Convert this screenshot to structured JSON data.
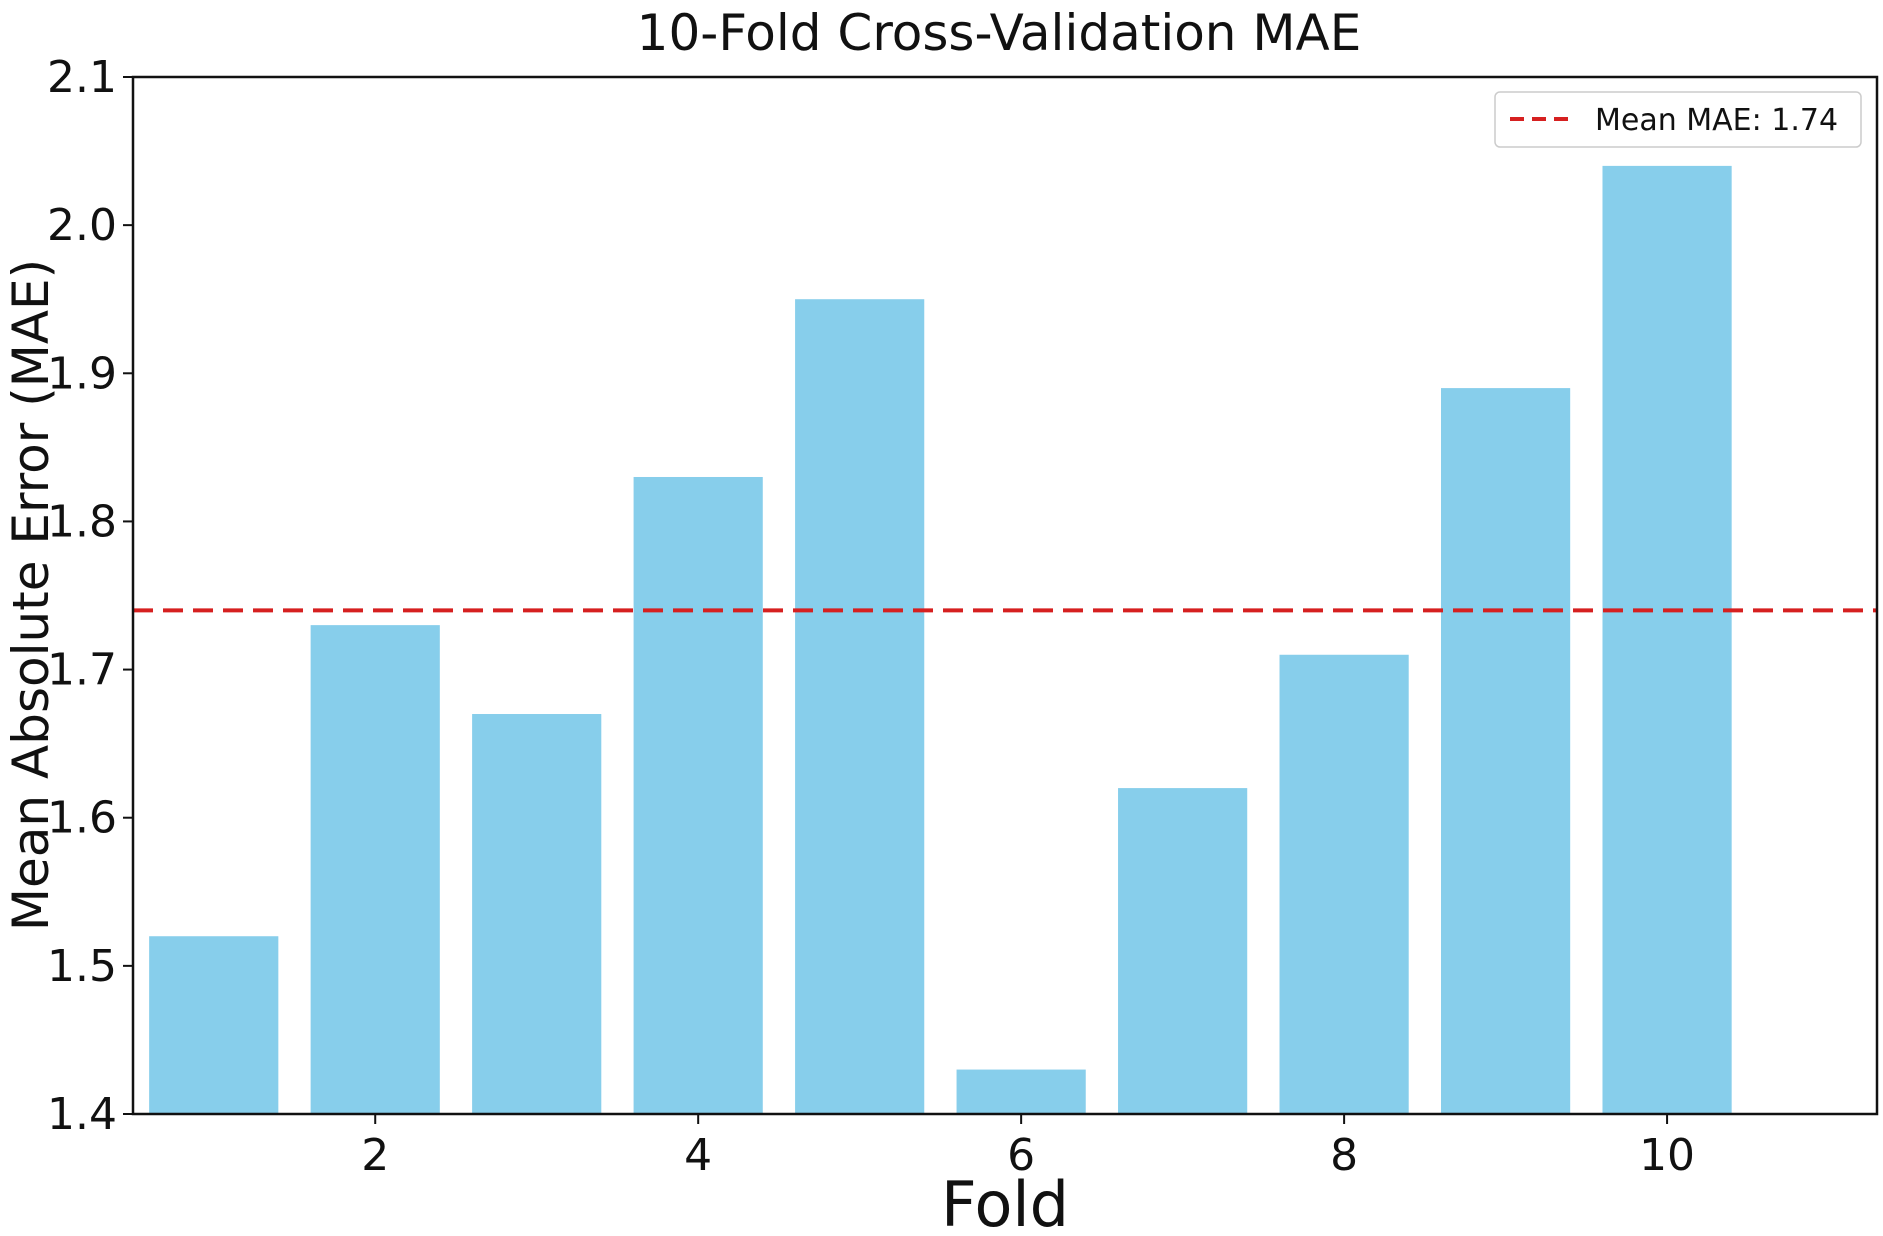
{
  "chart_data": {
    "type": "bar",
    "title": "10-Fold Cross-Validation MAE",
    "xlabel": "Fold",
    "ylabel": "Mean Absolute Error (MAE)",
    "categories": [
      1,
      2,
      3,
      4,
      5,
      6,
      7,
      8,
      9,
      10
    ],
    "values": [
      1.52,
      1.73,
      1.67,
      1.83,
      1.95,
      1.43,
      1.62,
      1.71,
      1.89,
      2.04
    ],
    "ylim": [
      1.4,
      2.1
    ],
    "xlim": [
      0.5,
      11.3
    ],
    "yticks": [
      "1.4",
      "1.5",
      "1.6",
      "1.7",
      "1.8",
      "1.9",
      "2.0",
      "2.1"
    ],
    "xticks": [
      "2",
      "4",
      "6",
      "8",
      "10"
    ],
    "bar_color": "#87CEEB",
    "mean_line": {
      "value": 1.74,
      "color": "#D62020",
      "label": "Mean MAE: 1.74"
    },
    "legend_position": "top-right",
    "grid": false
  }
}
